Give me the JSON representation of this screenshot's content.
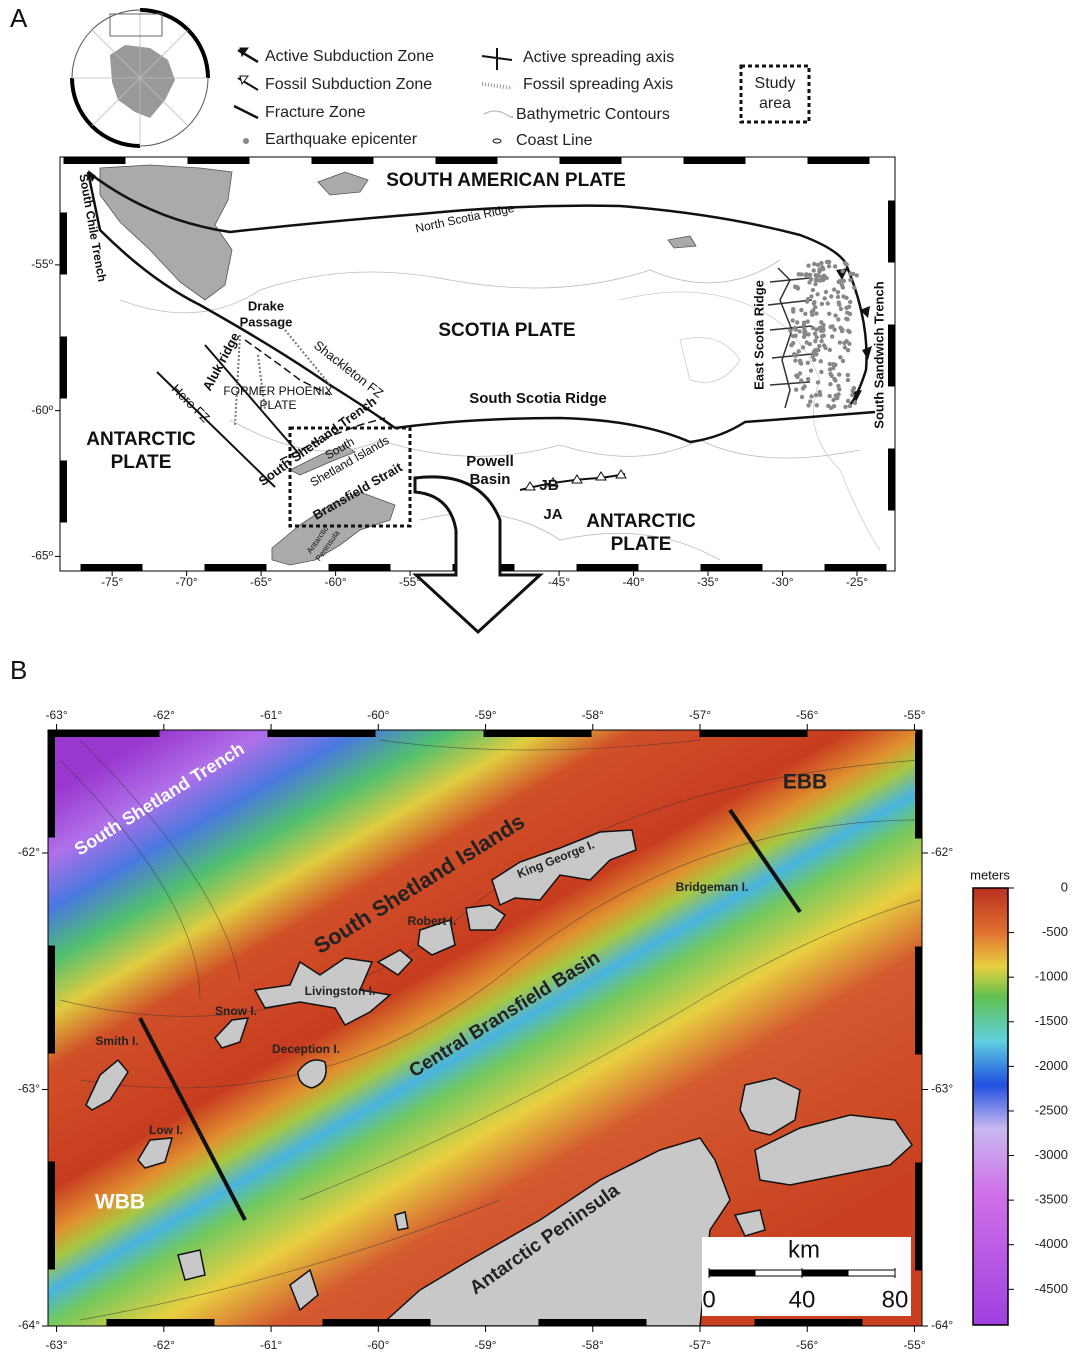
{
  "panel_a": {
    "label": "A",
    "legend": [
      "Active Subduction Zone",
      "Fossil Subduction Zone",
      "Fracture Zone",
      "Earthquake epicenter",
      "Active spreading axis",
      "Fossil spreading Axis",
      "Bathymetric Contours",
      "Coast Line"
    ],
    "study_area": [
      "Study",
      "area"
    ],
    "labels": {
      "south_american_plate": "SOUTH AMERICAN PLATE",
      "north_scotia_ridge": "North Scotia Ridge",
      "south_chile_trench": "South Chile Trench",
      "scotia_plate": "SCOTIA PLATE",
      "drake_passage": [
        "Drake",
        "Passage"
      ],
      "aluk_ridge": "Aluk ridge",
      "shackleton_fz": "Shackleton FZ",
      "hero_fz": "Hero FZ",
      "former_phoenix_plate": [
        "FORMER PHOENIX",
        "PLATE"
      ],
      "south_scotia_ridge": "South Scotia Ridge",
      "antarctic_plate_west": [
        "ANTARCTIC",
        "PLATE"
      ],
      "south_shetland_trench": "South Shetland Trench",
      "south_shetland_islands": [
        "South",
        "Shetland Islands"
      ],
      "bransfield_strait": "Bransfield Strait",
      "powell_basin": [
        "Powell",
        "Basin"
      ],
      "jb": "JB",
      "ja": "JA",
      "antarctic_plate_east": [
        "ANTARCTIC",
        "PLATE"
      ],
      "east_scotia_ridge": "East Scotia Ridge",
      "south_sandwich_trench": "South Sandwich Trench",
      "antarctic_peninsula": [
        "Antarctic",
        "Peninsula"
      ]
    },
    "xlim": [
      -78.5,
      -22.45
    ],
    "ylim": [
      -65.5,
      -51.3
    ],
    "xticks": [
      {
        "value": -75,
        "label": "-75°"
      },
      {
        "value": -70,
        "label": "-70°"
      },
      {
        "value": -65,
        "label": "-65°"
      },
      {
        "value": -60,
        "label": "-60°"
      },
      {
        "value": -55,
        "label": "-55°"
      },
      {
        "value": -45,
        "label": "-45°"
      },
      {
        "value": -40,
        "label": "-40°"
      },
      {
        "value": -35,
        "label": "-35°"
      },
      {
        "value": -30,
        "label": "-30°"
      },
      {
        "value": -25,
        "label": "-25°"
      }
    ],
    "yticks": [
      {
        "value": -55,
        "label": "-55º"
      },
      {
        "value": -60,
        "label": "-60º"
      },
      {
        "value": -65,
        "label": "-65º"
      }
    ]
  },
  "panel_b": {
    "label": "B",
    "labels": {
      "south_shetland_trench": "South Shetland Trench",
      "south_shetland_islands": "South Shetland Islands",
      "king_george": "King George I.",
      "bridgeman": "Bridgeman I.",
      "robert": "Robert I.",
      "livingston": "Livingston I.",
      "snow": "Snow I.",
      "deception": "Deception I.",
      "smith": "Smith I.",
      "low": "Low I.",
      "central_bransfield_basin": "Central Bransfield Basin",
      "ebb": "EBB",
      "wbb": "WBB",
      "antarctic_peninsula": "Antarctic Peninsula"
    },
    "xlim": [
      -63.08,
      -54.93
    ],
    "ylim": [
      -64,
      -61.48
    ],
    "xticks": [
      {
        "value": -63,
        "label": "-63°"
      },
      {
        "value": -62,
        "label": "-62°"
      },
      {
        "value": -61,
        "label": "-61°"
      },
      {
        "value": -60,
        "label": "-60°"
      },
      {
        "value": -59,
        "label": "-59°"
      },
      {
        "value": -58,
        "label": "-58°"
      },
      {
        "value": -57,
        "label": "-57°"
      },
      {
        "value": -56,
        "label": "-56°"
      },
      {
        "value": -55,
        "label": "-55°"
      }
    ],
    "yticks": [
      {
        "value": -62,
        "label": "-62°"
      },
      {
        "value": -63,
        "label": "-63°"
      },
      {
        "value": -64,
        "label": "-64°"
      }
    ],
    "colorbar": {
      "title": "meters",
      "clim": [
        -4900,
        0
      ],
      "ticks": [
        0,
        -500,
        -1000,
        -1500,
        -2000,
        -2500,
        -3000,
        -3500,
        -4000,
        -4500
      ]
    },
    "scale_bar": {
      "title": "km",
      "ticks": [
        0,
        40,
        80
      ]
    }
  }
}
